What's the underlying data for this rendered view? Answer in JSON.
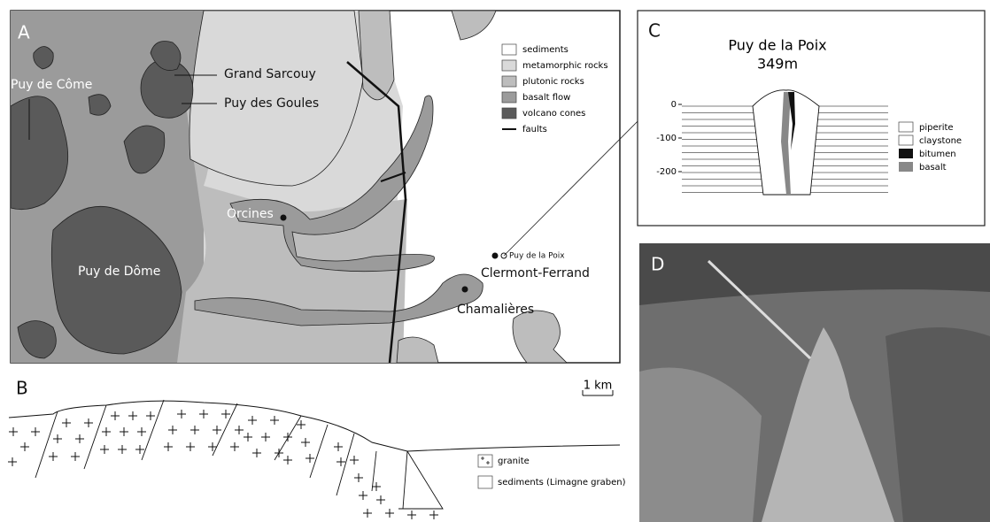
{
  "panels": {
    "a": {
      "label": "A",
      "places": [
        "Puy de Côme",
        "Grand Sarcouy",
        "Puy des Goules",
        "Orcines",
        "Puy de Dôme",
        "Puy de la Poix",
        "Clermont-Ferrand",
        "Chamalières"
      ],
      "legend": [
        "sediments",
        "metamorphic rocks",
        "plutonic rocks",
        "basalt flow",
        "volcano cones",
        "faults"
      ]
    },
    "b": {
      "label": "B",
      "scale": "1 km",
      "legend": [
        "granite",
        "sediments (Limagne graben)"
      ]
    },
    "c": {
      "label": "C",
      "title": "Puy de la Poix",
      "elevation": "349m",
      "depth_ticks": [
        "0",
        "-100",
        "-200"
      ],
      "legend": [
        "piperite",
        "claystone",
        "bitumen",
        "basalt"
      ]
    },
    "d": {
      "label": "D"
    }
  }
}
